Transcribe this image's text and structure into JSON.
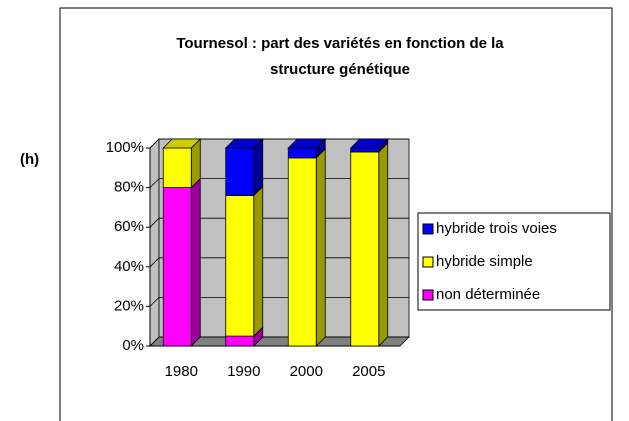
{
  "panel_label": "(h)",
  "chart_data": {
    "type": "stacked-bar-3d",
    "title": [
      "Tournesol : part des variétés en fonction de la",
      "structure génétique"
    ],
    "categories": [
      "1980",
      "1990",
      "2000",
      "2005"
    ],
    "series": [
      {
        "name": "non déterminée",
        "color": "#ff00ff",
        "values": [
          80,
          5,
          0,
          0
        ]
      },
      {
        "name": "hybride simple",
        "color": "#ffff00",
        "values": [
          20,
          71,
          95,
          98
        ]
      },
      {
        "name": "hybride trois voies",
        "color": "#0000ff",
        "values": [
          0,
          24,
          5,
          2
        ]
      }
    ],
    "ylim": [
      0,
      100
    ],
    "yticks": [
      {
        "value": 0,
        "label": "0%"
      },
      {
        "value": 20,
        "label": "20%"
      },
      {
        "value": 40,
        "label": "40%"
      },
      {
        "value": 60,
        "label": "60%"
      },
      {
        "value": 80,
        "label": "80%"
      },
      {
        "value": 100,
        "label": "100%"
      }
    ],
    "grid": true,
    "legend": "right"
  }
}
